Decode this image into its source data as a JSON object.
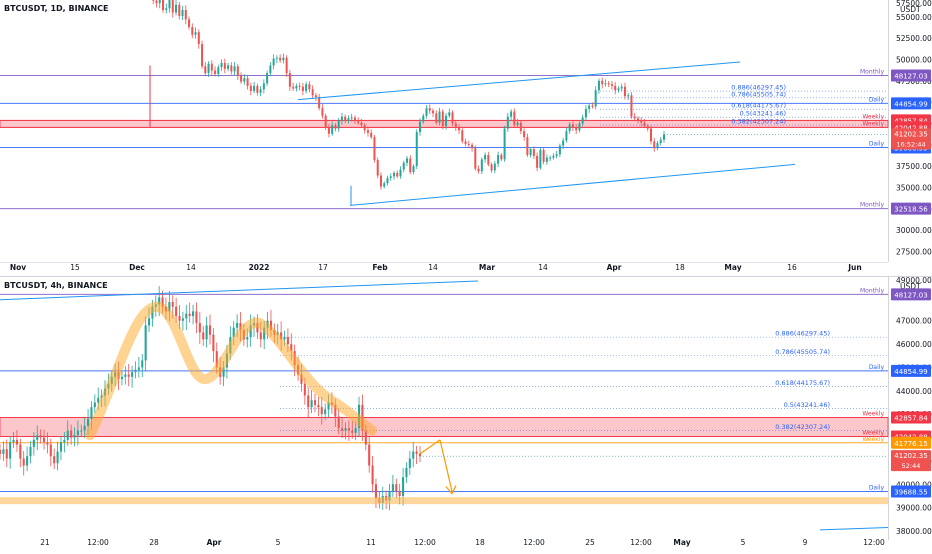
{
  "chart_data": [
    {
      "type": "candlestick",
      "title": "BTCUSDT, 1D, BINANCE",
      "price_unit": "USDT",
      "x_ticks": [
        "Nov",
        "15",
        "Dec",
        "14",
        "2022",
        "17",
        "Feb",
        "14",
        "Mar",
        "14",
        "Apr",
        "18",
        "May",
        "16",
        "Jun"
      ],
      "y_ticks": [
        55000,
        52500,
        50000,
        47500,
        45000,
        42500,
        40000,
        37500,
        35000,
        32500,
        30000,
        27500
      ],
      "ylim": [
        26500,
        56500
      ],
      "levels": [
        {
          "label": "Monthly",
          "value": 48127.03,
          "price_label": "48127.03"
        },
        {
          "label": "Daily",
          "value": 44854.99,
          "price_label": "44854.99"
        },
        {
          "label": "Weekly",
          "value": 42857.84,
          "price_label": "42857.84"
        },
        {
          "label": "Weekly",
          "value": 42042.88,
          "price_label": "42042.88"
        },
        {
          "label": "Daily",
          "value": 39688.55,
          "price_label": "39688.55"
        },
        {
          "label": "Monthly",
          "value": 32518.56,
          "price_label": "32518.56"
        }
      ],
      "fib_levels": [
        {
          "label": "0.886(46297.45)",
          "value": 46297.45
        },
        {
          "label": "0.786(45505.74)",
          "value": 45505.74
        },
        {
          "label": "0.618(44175.67)",
          "value": 44175.67
        },
        {
          "label": "0.5(43241.46)",
          "value": 43241.46
        },
        {
          "label": "0.382(42307.24)",
          "value": 42307.24
        }
      ],
      "last_price": "41202.35",
      "countdown": "16:52:44",
      "top_tick": "57500.00",
      "close": [
        57300,
        56900,
        56600,
        57500,
        55800,
        56000,
        57200,
        55500,
        56400,
        55100,
        55800,
        54700,
        53800,
        52900,
        53200,
        51800,
        49200,
        48400,
        49500,
        48700,
        48300,
        49100,
        49600,
        48900,
        49300,
        48600,
        49200,
        48100,
        47400,
        47800,
        46900,
        46300,
        46900,
        46100,
        46500,
        47200,
        48400,
        49300,
        50100,
        50200,
        49900,
        50200,
        48400,
        46800,
        46600,
        46900,
        46800,
        46300,
        47100,
        46500,
        45800,
        45600,
        44300,
        43400,
        42100,
        41300,
        42300,
        41900,
        42800,
        43300,
        42800,
        43100,
        43200,
        42900,
        42600,
        42300,
        41700,
        41400,
        40900,
        38200,
        36400,
        35100,
        35500,
        36100,
        36300,
        36700,
        36300,
        37100,
        37900,
        38400,
        36800,
        37500,
        41500,
        42700,
        43400,
        44300,
        44000,
        43700,
        42600,
        43900,
        42200,
        43400,
        43800,
        42500,
        42000,
        41700,
        40400,
        40100,
        40000,
        39600,
        37200,
        36900,
        38300,
        38800,
        37700,
        37000,
        37800,
        38800,
        38300,
        41900,
        43300,
        43900,
        42300,
        42600,
        41600,
        40900,
        38800,
        39500,
        38700,
        37300,
        39400,
        38000,
        38500,
        38500,
        38700,
        38900,
        39900,
        40500,
        41600,
        42400,
        42000,
        41700,
        42500,
        43200,
        44200,
        44600,
        44500,
        46400,
        47500,
        47100,
        47200,
        47100,
        46900,
        46400,
        46600,
        46800,
        45700,
        45800,
        43300,
        43100,
        42900,
        42600,
        42200,
        41900,
        40400,
        39600,
        40200,
        40600,
        41202
      ]
    },
    {
      "type": "candlestick",
      "title": "BTCUSDT, 4h, BINANCE",
      "price_unit": "USDT",
      "x_ticks": [
        "21",
        "12:00",
        "28",
        "Apr",
        "5",
        "11",
        "12:00",
        "18",
        "12:00",
        "25",
        "12:00",
        "May",
        "5",
        "9",
        "12:00"
      ],
      "y_ticks": [
        47000,
        46000,
        45000,
        44000,
        43000,
        42000,
        41000,
        40000,
        39000,
        38000
      ],
      "ylim": [
        37700,
        48700
      ],
      "levels": [
        {
          "label": "Monthly",
          "value": 48127.03,
          "price_label": "48127.03"
        },
        {
          "label": "Daily",
          "value": 44854.99,
          "price_label": "44854.99"
        },
        {
          "label": "Weekly",
          "value": 42857.84,
          "price_label": "42857.84"
        },
        {
          "label": "Weekly",
          "value": 42042.88,
          "price_label": "42042.88"
        },
        {
          "label": "Weekly",
          "value": 41776.15,
          "price_label": "41776.15"
        },
        {
          "label": "Daily",
          "value": 39688.55,
          "price_label": "39688.55"
        }
      ],
      "fib_levels": [
        {
          "label": "0.886(46297.45)",
          "value": 46297.45
        },
        {
          "label": "0.786(45505.74)",
          "value": 45505.74
        },
        {
          "label": "0.618(44175.67)",
          "value": 44175.67
        },
        {
          "label": "0.5(43241.46)",
          "value": 43241.46
        },
        {
          "label": "0.382(42307.24)",
          "value": 42307.24
        }
      ],
      "last_price": "41202.35",
      "countdown": "52:44",
      "top_tick": "49000.00",
      "close": [
        41300,
        41500,
        41100,
        41800,
        41900,
        41700,
        41100,
        40800,
        41200,
        41600,
        41900,
        42100,
        42000,
        41800,
        41700,
        41200,
        40900,
        41400,
        41800,
        41900,
        42300,
        42000,
        42100,
        42300,
        42300,
        42500,
        42800,
        43300,
        43500,
        43700,
        43800,
        44100,
        44300,
        44600,
        44800,
        44500,
        44600,
        44700,
        44600,
        44800,
        44900,
        45000,
        45300,
        46800,
        47100,
        47600,
        47700,
        48000,
        47600,
        47400,
        47800,
        47600,
        47200,
        47000,
        47100,
        47300,
        47200,
        47400,
        46900,
        46500,
        46200,
        46800,
        46400,
        45700,
        45000,
        44600,
        45000,
        45600,
        46300,
        46700,
        46900,
        46600,
        46200,
        46300,
        46800,
        46900,
        46500,
        46200,
        46700,
        47000,
        46600,
        46400,
        46500,
        46200,
        46300,
        46000,
        45700,
        45100,
        44700,
        44300,
        43800,
        43300,
        43600,
        43400,
        43300,
        43000,
        43200,
        43500,
        43400,
        42900,
        42400,
        42300,
        42400,
        42300,
        42200,
        42400,
        43400,
        42300,
        41700,
        40800,
        40000,
        39400,
        39200,
        39500,
        39300,
        39700,
        40000,
        39700,
        39500,
        40300,
        40700,
        41100,
        41400,
        41300,
        41202
      ]
    }
  ],
  "annotations": {
    "projection": "bearish arrow from current price down toward the Daily support",
    "pattern": "orange head-and-shoulders style highlight path"
  }
}
